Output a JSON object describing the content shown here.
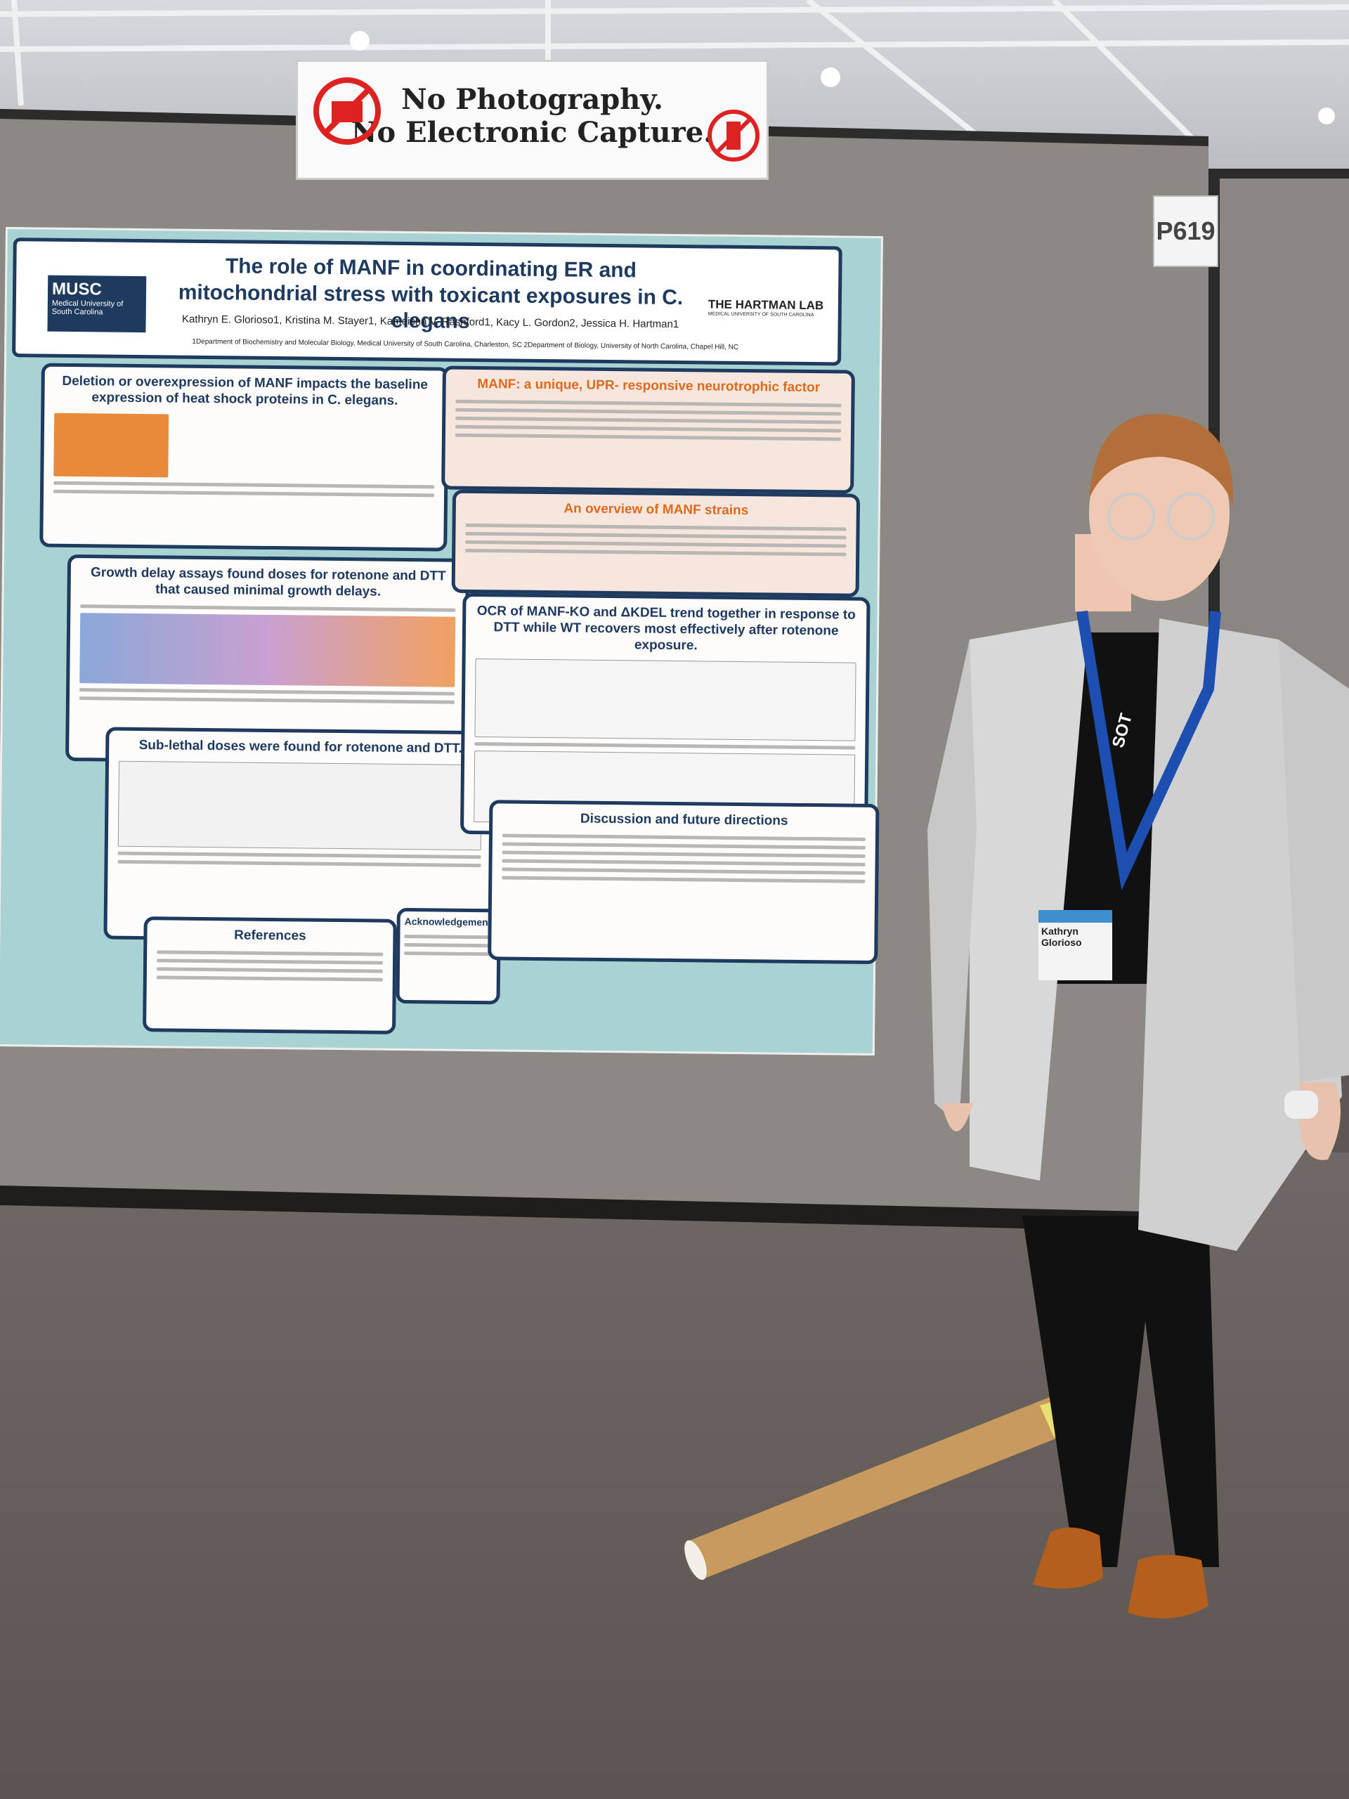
{
  "sign": {
    "line1": "No Photography.",
    "line2": "No Electronic Capture."
  },
  "booth": "P619",
  "poster": {
    "logo_left": {
      "name": "MUSC",
      "subtitle": "Medical University of South Carolina"
    },
    "logo_right": {
      "name": "THE HARTMAN LAB",
      "subtitle": "MEDICAL UNIVERSITY OF SOUTH CAROLINA"
    },
    "title": "The role of MANF in coordinating ER and mitochondrial stress with toxicant exposures in C. elegans",
    "authors": "Kathryn E. Glorioso1, Kristina M. Stayer1, Kameisha V. Rashford1, Kacy L. Gordon2, Jessica H. Hartman1",
    "affiliations": "1Department of Biochemistry and Molecular Biology, Medical University of South Carolina, Charleston, SC   2Department of Biology, University of North Carolina, Chapel Hill, NC",
    "sections": [
      "Deletion or overexpression of MANF impacts the baseline expression of heat shock proteins in C. elegans.",
      "Growth delay assays found doses for rotenone and DTT that caused minimal growth delays.",
      "Sub-lethal doses were found for rotenone and DTT.",
      "References",
      "Acknowledgements",
      "MANF: a unique, UPR- responsive neurotrophic factor",
      "An overview of MANF strains",
      "OCR of MANF-KO and ΔKDEL trend together in response to DTT while WT recovers most effectively after rotenone exposure.",
      "Discussion and future directions"
    ]
  },
  "badge": {
    "name": "Kathryn Glorioso",
    "lanyard": "SOT"
  }
}
